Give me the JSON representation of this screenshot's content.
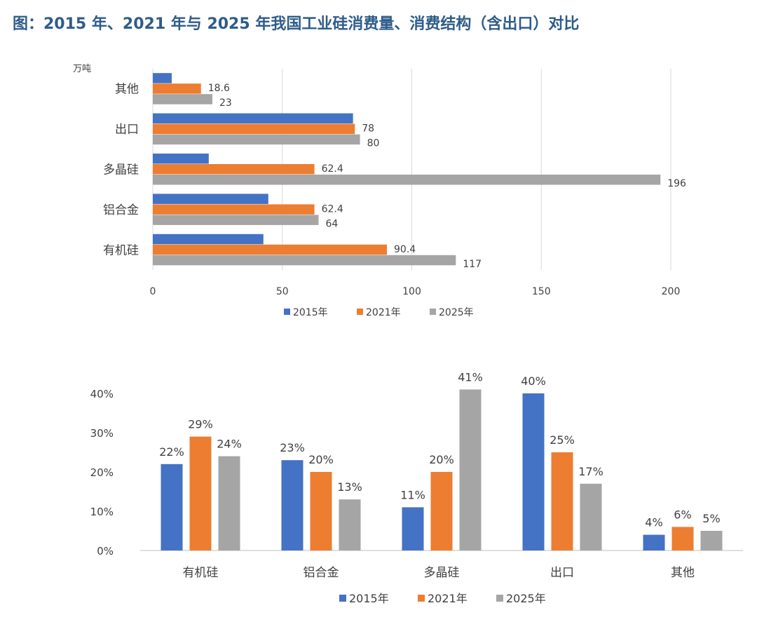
{
  "title": "图：2015 年、2021 年与 2025 年我国工业硅消费量、消费结构（含出口）对比",
  "colors": {
    "2015年": "#4472c4",
    "2021年": "#ed7d31",
    "2025年": "#a5a5a5"
  },
  "chart_data": [
    {
      "type": "bar",
      "orientation": "horizontal",
      "unit_label": "万吨",
      "categories": [
        "其他",
        "出口",
        "多晶硅",
        "铝合金",
        "有机硅"
      ],
      "series": [
        {
          "name": "2015年",
          "values": [
            7.3,
            77.3,
            21.6,
            44.6,
            42.7
          ],
          "labels": [
            "",
            "",
            "",
            "",
            ""
          ]
        },
        {
          "name": "2021年",
          "values": [
            18.6,
            78,
            62.4,
            62.4,
            90.4
          ],
          "labels": [
            "18.6",
            "78",
            "62.4",
            "62.4",
            "90.4"
          ]
        },
        {
          "name": "2025年",
          "values": [
            23,
            80,
            196,
            64,
            117
          ],
          "labels": [
            "23",
            "80",
            "196",
            "64",
            "117"
          ]
        }
      ],
      "xlim": [
        0,
        200
      ],
      "ticks": [
        0,
        50,
        100,
        150,
        200
      ],
      "grid": true,
      "legend": "bottom"
    },
    {
      "type": "bar",
      "orientation": "vertical",
      "categories": [
        "有机硅",
        "铝合金",
        "多晶硅",
        "出口",
        "其他"
      ],
      "series": [
        {
          "name": "2015年",
          "values": [
            22,
            23,
            11,
            40,
            4
          ],
          "labels": [
            "22%",
            "23%",
            "11%",
            "40%",
            "4%"
          ]
        },
        {
          "name": "2021年",
          "values": [
            29,
            20,
            20,
            25,
            6
          ],
          "labels": [
            "29%",
            "20%",
            "20%",
            "25%",
            "6%"
          ]
        },
        {
          "name": "2025年",
          "values": [
            24,
            13,
            41,
            17,
            5
          ],
          "labels": [
            "24%",
            "13%",
            "41%",
            "17%",
            "5%"
          ]
        }
      ],
      "ylim": [
        0,
        40
      ],
      "ticks": [
        "0%",
        "10%",
        "20%",
        "30%",
        "40%"
      ],
      "grid": false,
      "legend": "bottom"
    }
  ]
}
